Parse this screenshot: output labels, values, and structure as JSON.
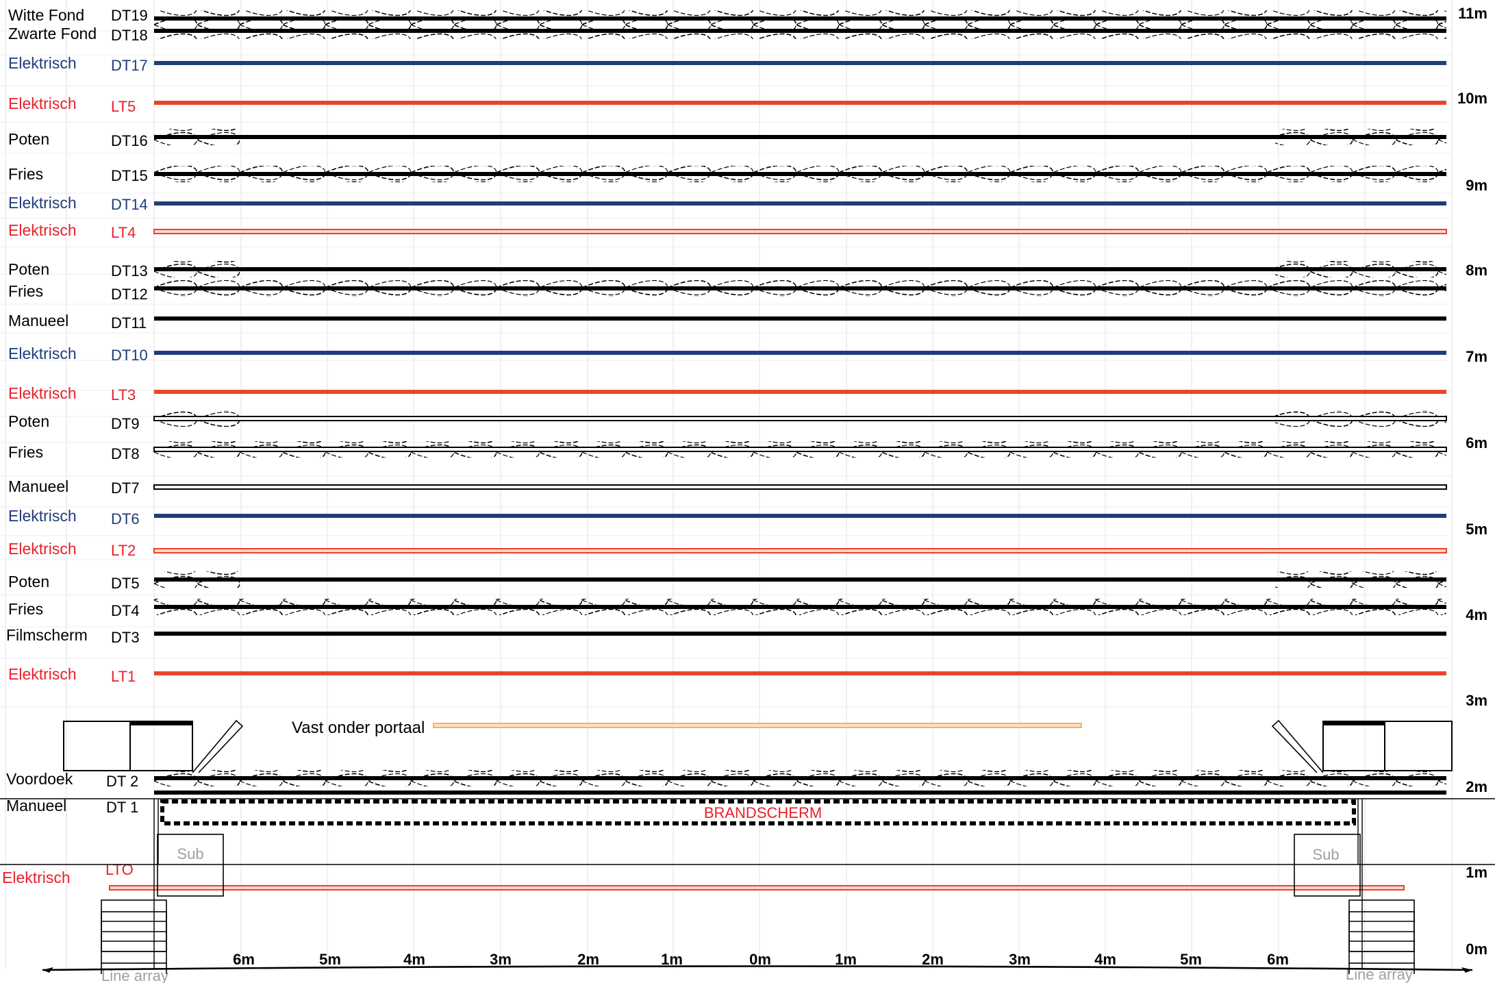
{
  "palette": {
    "black": "#000000",
    "electric_blue": "#1f3d7a",
    "electric_red": "#e8462a",
    "label_red": "#e8202a",
    "label_blue": "#1f3d7a",
    "portal_orange": "#f4b26b",
    "grid": "#ececec",
    "grey_text": "#a0a0a0"
  },
  "bars": [
    {
      "id": "dt19",
      "name": "Witte Fond",
      "code": "DT19",
      "style": "dark",
      "curtain": "full",
      "name_color": "black",
      "code_color": "black"
    },
    {
      "id": "dt18",
      "name": "Zwarte Fond",
      "code": "DT18",
      "style": "dark",
      "curtain": "full",
      "name_color": "black",
      "code_color": "black"
    },
    {
      "id": "dt17",
      "name": "Elektrisch",
      "code": "DT17",
      "style": "blue",
      "curtain": "none",
      "name_color": "blue",
      "code_color": "blue"
    },
    {
      "id": "lt5",
      "name": "Elektrisch",
      "code": "LT5",
      "style": "red",
      "curtain": "none",
      "name_color": "red",
      "code_color": "red"
    },
    {
      "id": "dt16",
      "name": "Poten",
      "code": "DT16",
      "style": "dark",
      "curtain": "legs",
      "name_color": "black",
      "code_color": "black"
    },
    {
      "id": "dt15",
      "name": "Fries",
      "code": "DT15",
      "style": "dark",
      "curtain": "full",
      "name_color": "black",
      "code_color": "black"
    },
    {
      "id": "dt14",
      "name": "Elektrisch",
      "code": "DT14",
      "style": "blue",
      "curtain": "none",
      "name_color": "blue",
      "code_color": "blue"
    },
    {
      "id": "lt4",
      "name": "Elektrisch",
      "code": "LT4",
      "style": "red-hollow",
      "curtain": "none",
      "name_color": "red",
      "code_color": "red"
    },
    {
      "id": "dt13",
      "name": "Poten",
      "code": "DT13",
      "style": "dark",
      "curtain": "legs",
      "name_color": "black",
      "code_color": "black"
    },
    {
      "id": "dt12",
      "name": "Fries",
      "code": "DT12",
      "style": "dark",
      "curtain": "full",
      "name_color": "black",
      "code_color": "black"
    },
    {
      "id": "dt11",
      "name": "Manueel",
      "code": "DT11",
      "style": "dark",
      "curtain": "none",
      "name_color": "black",
      "code_color": "black"
    },
    {
      "id": "dt10",
      "name": "Elektrisch",
      "code": "DT10",
      "style": "blue",
      "curtain": "none",
      "name_color": "blue",
      "code_color": "blue"
    },
    {
      "id": "lt3",
      "name": "Elektrisch",
      "code": "LT3",
      "style": "red",
      "curtain": "none",
      "name_color": "red",
      "code_color": "red"
    },
    {
      "id": "dt9",
      "name": "Poten",
      "code": "DT9",
      "style": "hollow",
      "curtain": "legs",
      "name_color": "black",
      "code_color": "black"
    },
    {
      "id": "dt8",
      "name": "Fries",
      "code": "DT8",
      "style": "hollow",
      "curtain": "full",
      "name_color": "black",
      "code_color": "black"
    },
    {
      "id": "dt7",
      "name": "Manueel",
      "code": "DT7",
      "style": "hollow",
      "curtain": "none",
      "name_color": "black",
      "code_color": "black"
    },
    {
      "id": "dt6",
      "name": "Elektrisch",
      "code": "DT6",
      "style": "blue",
      "curtain": "none",
      "name_color": "blue",
      "code_color": "blue"
    },
    {
      "id": "lt2",
      "name": "Elektrisch",
      "code": "LT2",
      "style": "red-hollow",
      "curtain": "none",
      "name_color": "red",
      "code_color": "red"
    },
    {
      "id": "dt5",
      "name": "Poten",
      "code": "DT5",
      "style": "dark",
      "curtain": "legs",
      "name_color": "black",
      "code_color": "black"
    },
    {
      "id": "dt4",
      "name": "Fries",
      "code": "DT4",
      "style": "dark",
      "curtain": "full",
      "name_color": "black",
      "code_color": "black"
    },
    {
      "id": "dt3",
      "name": "Filmscherm",
      "code": "DT3",
      "style": "dark",
      "curtain": "none",
      "name_color": "black",
      "code_color": "black"
    },
    {
      "id": "lt1",
      "name": "Elektrisch",
      "code": "LT1",
      "style": "red",
      "curtain": "none",
      "name_color": "red",
      "code_color": "red"
    },
    {
      "id": "dt2",
      "name": "Voordoek",
      "code": "DT 2",
      "style": "dark",
      "curtain": "full",
      "name_color": "black",
      "code_color": "black"
    },
    {
      "id": "dt1",
      "name": "Manueel",
      "code": "DT 1",
      "style": "dark",
      "curtain": "none",
      "name_color": "black",
      "code_color": "black"
    },
    {
      "id": "lto",
      "name": "Elektrisch",
      "code": "LTO",
      "style": "red-hollow",
      "curtain": "none",
      "name_color": "red",
      "code_color": "red"
    }
  ],
  "portal": {
    "label": "Vast onder portaal"
  },
  "fire_curtain": {
    "label": "BRANDSCHERM"
  },
  "subs": {
    "label": "Sub"
  },
  "line_arrays": {
    "label": "Line array"
  },
  "height_scale": [
    "11m",
    "10m",
    "9m",
    "8m",
    "7m",
    "6m",
    "5m",
    "4m",
    "3m",
    "2m",
    "1m",
    "0m"
  ],
  "width_scale": [
    "6m",
    "5m",
    "4m",
    "3m",
    "2m",
    "1m",
    "0m",
    "1m",
    "2m",
    "3m",
    "4m",
    "5m",
    "6m"
  ]
}
